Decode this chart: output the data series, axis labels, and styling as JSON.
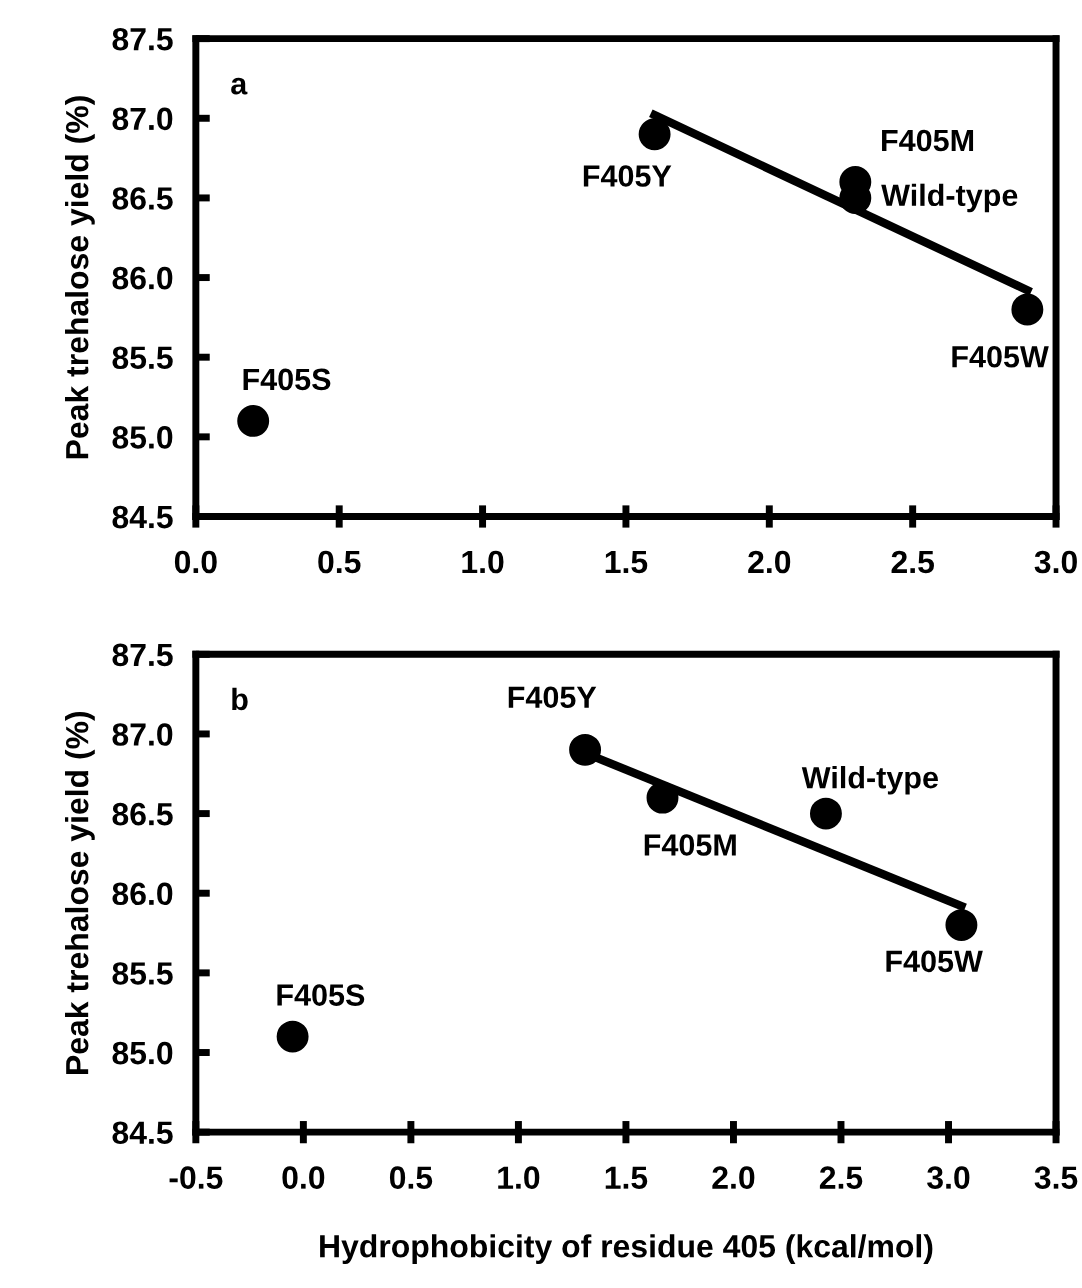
{
  "chart_data": [
    {
      "type": "scatter",
      "title": "a",
      "ylabel": "Peak trehalose yield (%)",
      "xlim": [
        0.0,
        3.0
      ],
      "xticks": [
        {
          "value": 0,
          "label": "0.0"
        },
        0.5,
        {
          "value": 1,
          "label": "1.0"
        },
        1.5,
        {
          "value": 2,
          "label": "2.0"
        },
        2.5,
        {
          "value": 3,
          "label": "3.0"
        }
      ],
      "ylim": [
        84.5,
        87.5
      ],
      "yticks": [
        84.5,
        {
          "value": 85,
          "label": "85.0"
        },
        85.5,
        {
          "value": 86,
          "label": "86.0"
        },
        86.5,
        {
          "value": 87,
          "label": "87.0"
        },
        87.5
      ],
      "grid": false,
      "legend": false,
      "series": [
        {
          "marker": "circle",
          "color": "#000000",
          "x": [
            0.2,
            1.6,
            2.3,
            2.3,
            2.9
          ],
          "values": [
            85.1,
            86.9,
            86.6,
            86.5,
            85.8
          ]
        },
        {
          "type": "line",
          "color": "#000000",
          "line_style": "solid",
          "x": [
            1.6,
            2.9
          ],
          "values": [
            87.02,
            85.92
          ]
        }
      ],
      "annotations": [
        {
          "text": "F405S",
          "x": 0.2,
          "y": 85.1
        },
        {
          "text": "F405Y",
          "x": 1.6,
          "y": 86.9
        },
        {
          "text": "F405M",
          "x": 2.3,
          "y": 86.6
        },
        {
          "text": "Wild-type",
          "x": 2.3,
          "y": 86.5
        },
        {
          "text": "F405W",
          "x": 2.9,
          "y": 85.8
        }
      ]
    },
    {
      "type": "scatter",
      "title": "b",
      "xlabel": "Hydrophobicity of residue 405 (kcal/mol)",
      "ylabel": "Peak trehalose yield (%)",
      "xlim": [
        -0.5,
        3.5
      ],
      "xticks": [
        -0.5,
        {
          "value": 0,
          "label": "0.0"
        },
        0.5,
        {
          "value": 1,
          "label": "1.0"
        },
        1.5,
        {
          "value": 2,
          "label": "2.0"
        },
        2.5,
        {
          "value": 3,
          "label": "3.0"
        },
        3.5
      ],
      "ylim": [
        84.5,
        87.5
      ],
      "yticks": [
        84.5,
        {
          "value": 85,
          "label": "85.0"
        },
        85.5,
        {
          "value": 86,
          "label": "86.0"
        },
        86.5,
        {
          "value": 87,
          "label": "87.0"
        },
        87.5
      ],
      "grid": false,
      "legend": false,
      "series": [
        {
          "marker": "circle",
          "color": "#000000",
          "x": [
            -0.05,
            1.31,
            1.67,
            2.43,
            3.06
          ],
          "values": [
            85.1,
            86.9,
            86.6,
            86.5,
            85.8
          ]
        },
        {
          "type": "line",
          "color": "#000000",
          "line_style": "solid",
          "x": [
            1.31,
            3.06
          ],
          "values": [
            86.88,
            85.92
          ]
        }
      ],
      "annotations": [
        {
          "text": "F405S",
          "x": -0.05,
          "y": 85.1
        },
        {
          "text": "F405Y",
          "x": 1.31,
          "y": 86.9
        },
        {
          "text": "F405M",
          "x": 1.67,
          "y": 86.6
        },
        {
          "text": "Wild-type",
          "x": 2.43,
          "y": 86.5
        },
        {
          "text": "F405W",
          "x": 3.06,
          "y": 85.8
        }
      ]
    }
  ]
}
